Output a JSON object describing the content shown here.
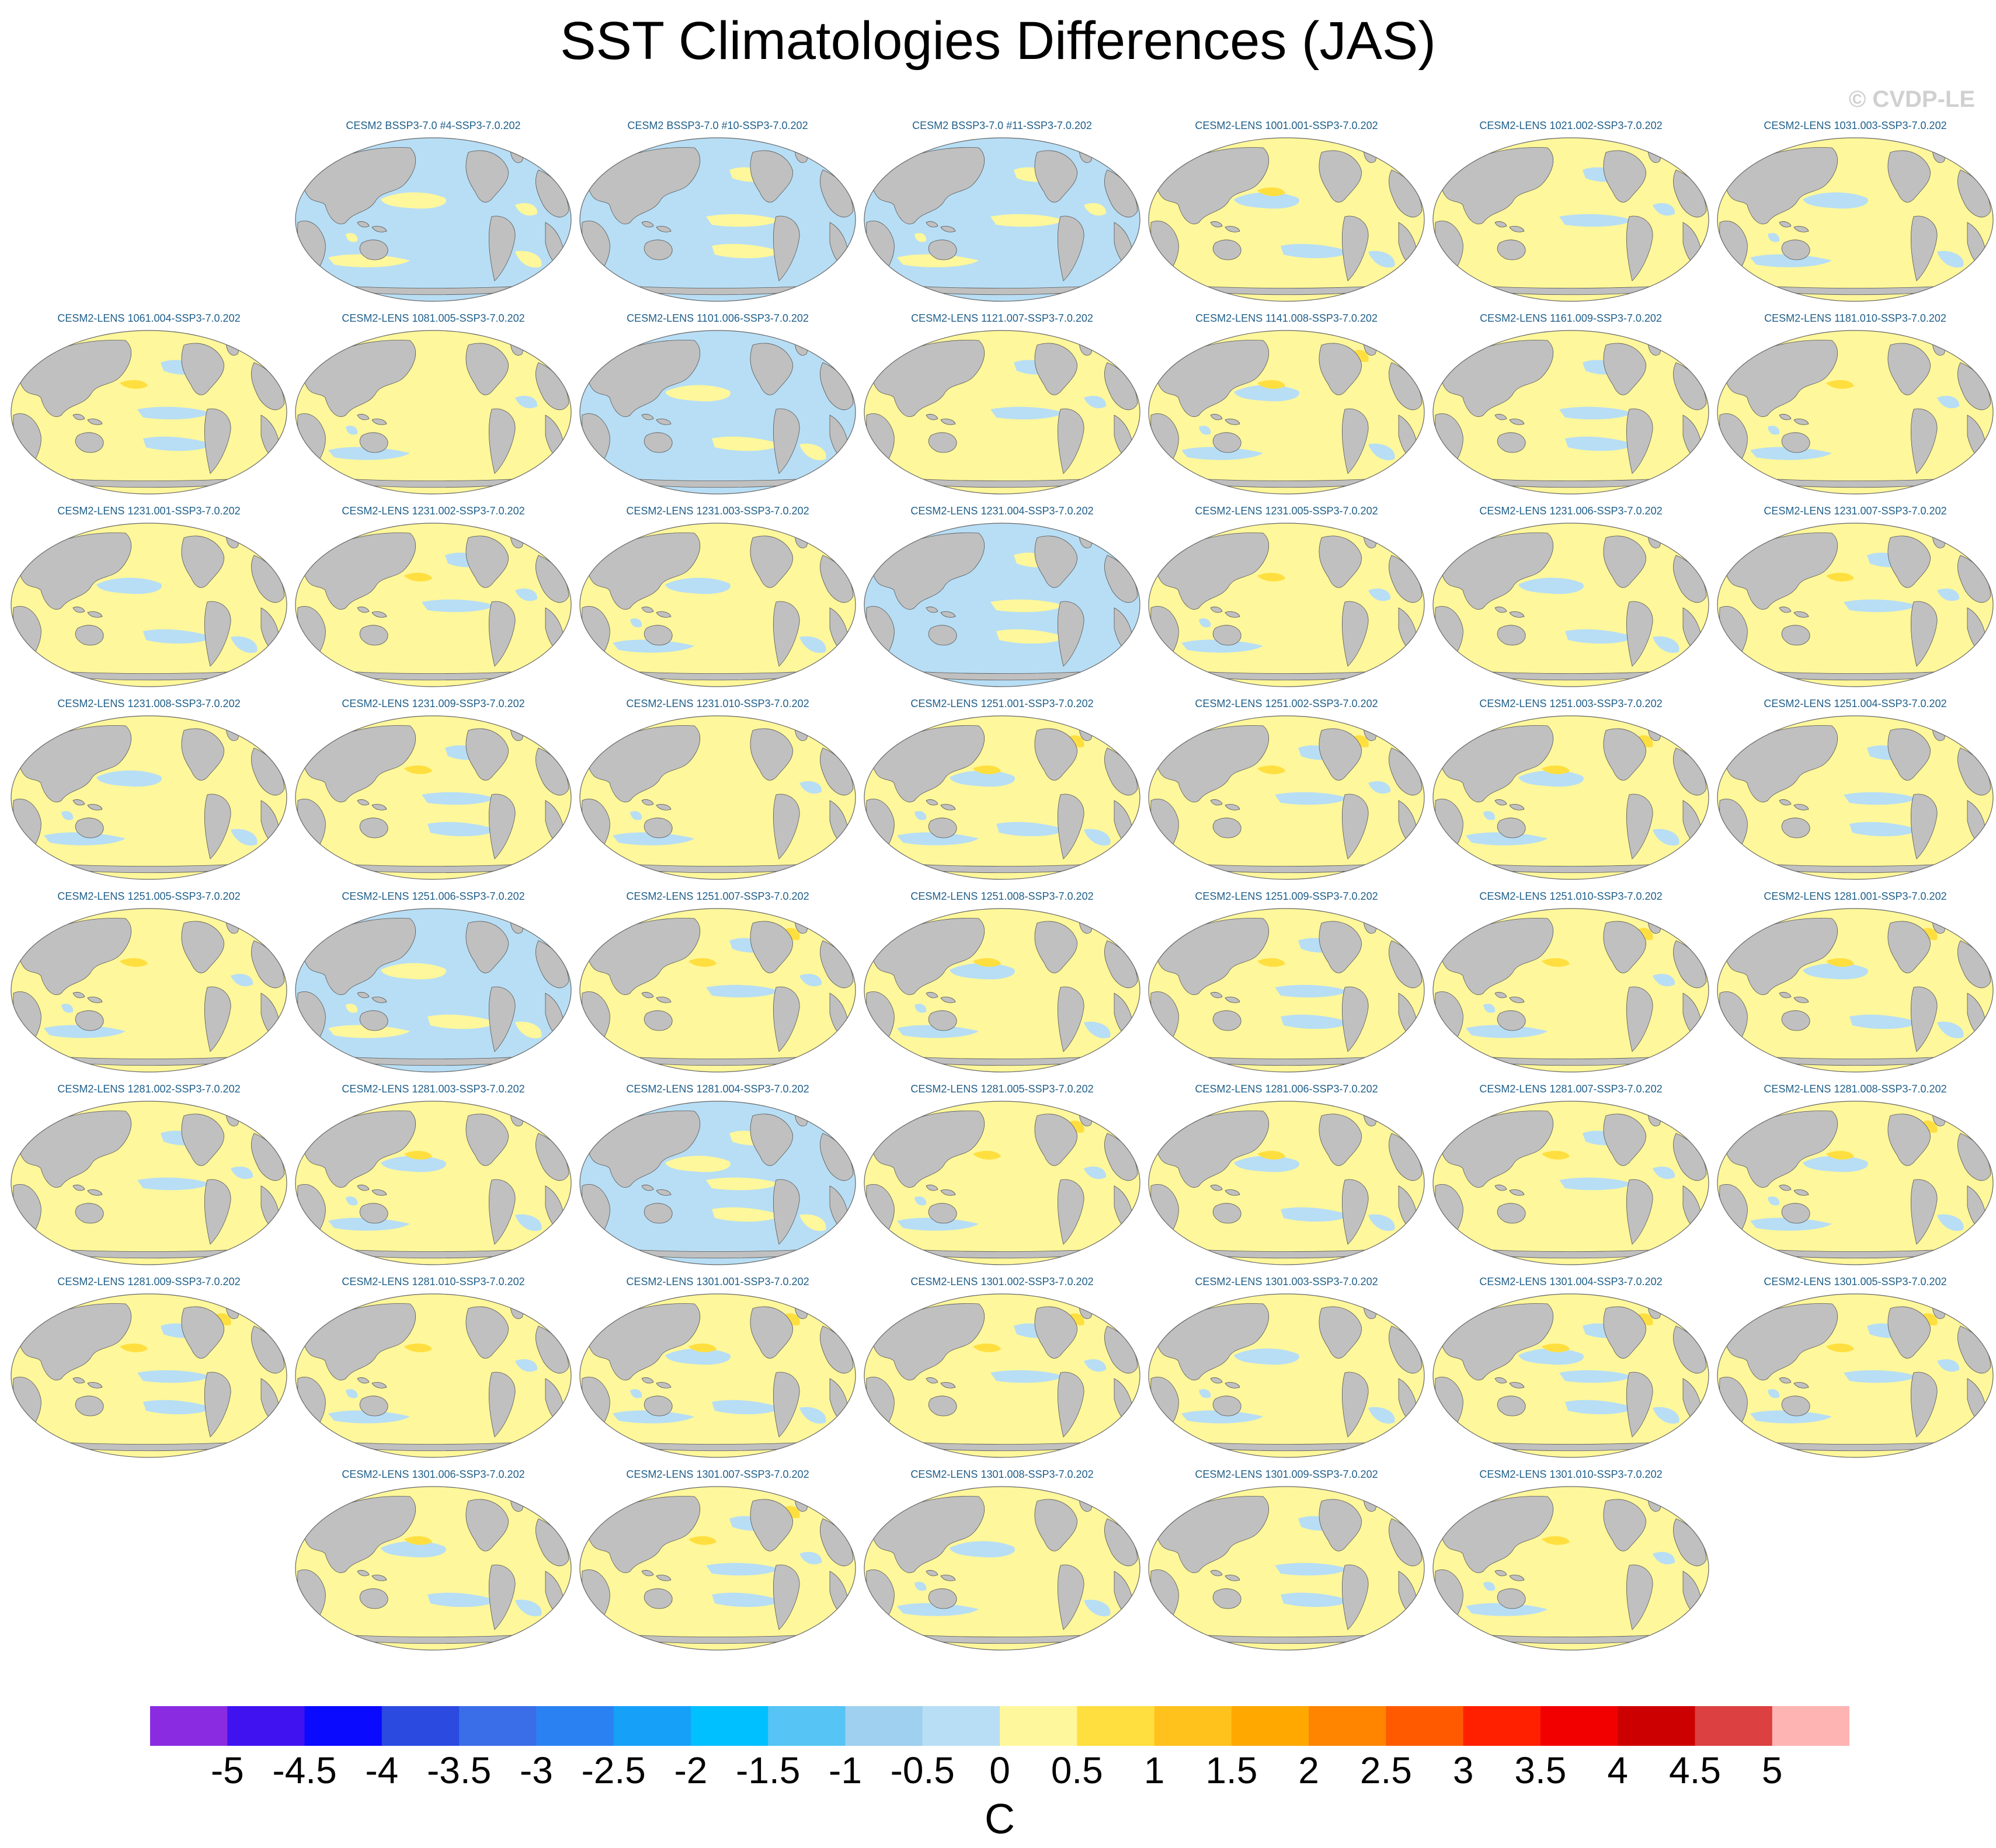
{
  "title": "SST Climatologies Differences (JAS)",
  "credit": "© CVDP-LE",
  "units": "C",
  "colors": {
    "land": "#c0c0c0",
    "ocean_pos": "#fff79b",
    "ocean_neg": "#b7def5",
    "pos_strong": "#ffdf3f",
    "neg_strong": "#9fd0ef",
    "label": "#1f5f8a"
  },
  "colorbar": {
    "colors": [
      "#8a2be2",
      "#4012f0",
      "#0a0aff",
      "#2a4ae0",
      "#3a6ee8",
      "#2a82f2",
      "#16a0f8",
      "#00c0ff",
      "#56c4f4",
      "#9fd0ef",
      "#b7def5",
      "#fff79b",
      "#ffdf3f",
      "#ffc21c",
      "#ffa800",
      "#ff8400",
      "#ff5a00",
      "#ff2000",
      "#f20000",
      "#cc0000",
      "#dc4040",
      "#ffb4b4"
    ],
    "ticks": [
      "-5",
      "-4.5",
      "-4",
      "-3.5",
      "-3",
      "-2.5",
      "-2",
      "-1.5",
      "-1",
      "-0.5",
      "0",
      "0.5",
      "1",
      "1.5",
      "2",
      "2.5",
      "3",
      "3.5",
      "4",
      "4.5",
      "5"
    ]
  },
  "panels": [
    {
      "label": "CESM2 BSSP3-7.0 #4-SSP3-7.0.202",
      "row": 0,
      "col": 1,
      "bias": -0.3
    },
    {
      "label": "CESM2 BSSP3-7.0 #10-SSP3-7.0.202",
      "row": 0,
      "col": 2,
      "bias": -0.2
    },
    {
      "label": "CESM2 BSSP3-7.0 #11-SSP3-7.0.202",
      "row": 0,
      "col": 3,
      "bias": -0.4
    },
    {
      "label": "CESM2-LENS 1001.001-SSP3-7.0.202",
      "row": 0,
      "col": 4,
      "bias": 0.3
    },
    {
      "label": "CESM2-LENS 1021.002-SSP3-7.0.202",
      "row": 0,
      "col": 5,
      "bias": 0.1
    },
    {
      "label": "CESM2-LENS 1031.003-SSP3-7.0.202",
      "row": 0,
      "col": 6,
      "bias": 0.2
    },
    {
      "label": "CESM2-LENS 1061.004-SSP3-7.0.202",
      "row": 1,
      "col": 0,
      "bias": 0.3
    },
    {
      "label": "CESM2-LENS 1081.005-SSP3-7.0.202",
      "row": 1,
      "col": 1,
      "bias": 0.0
    },
    {
      "label": "CESM2-LENS 1101.006-SSP3-7.0.202",
      "row": 1,
      "col": 2,
      "bias": -0.1
    },
    {
      "label": "CESM2-LENS 1121.007-SSP3-7.0.202",
      "row": 1,
      "col": 3,
      "bias": 0.0
    },
    {
      "label": "CESM2-LENS 1141.008-SSP3-7.0.202",
      "row": 1,
      "col": 4,
      "bias": 0.4
    },
    {
      "label": "CESM2-LENS 1161.009-SSP3-7.0.202",
      "row": 1,
      "col": 5,
      "bias": 0.2
    },
    {
      "label": "CESM2-LENS 1181.010-SSP3-7.0.202",
      "row": 1,
      "col": 6,
      "bias": 0.3
    },
    {
      "label": "CESM2-LENS 1231.001-SSP3-7.0.202",
      "row": 2,
      "col": 0,
      "bias": 0.2
    },
    {
      "label": "CESM2-LENS 1231.002-SSP3-7.0.202",
      "row": 2,
      "col": 1,
      "bias": 0.3
    },
    {
      "label": "CESM2-LENS 1231.003-SSP3-7.0.202",
      "row": 2,
      "col": 2,
      "bias": 0.2
    },
    {
      "label": "CESM2-LENS 1231.004-SSP3-7.0.202",
      "row": 2,
      "col": 3,
      "bias": -0.1
    },
    {
      "label": "CESM2-LENS 1231.005-SSP3-7.0.202",
      "row": 2,
      "col": 4,
      "bias": 0.3
    },
    {
      "label": "CESM2-LENS 1231.006-SSP3-7.0.202",
      "row": 2,
      "col": 5,
      "bias": 0.2
    },
    {
      "label": "CESM2-LENS 1231.007-SSP3-7.0.202",
      "row": 2,
      "col": 6,
      "bias": 0.3
    },
    {
      "label": "CESM2-LENS 1231.008-SSP3-7.0.202",
      "row": 3,
      "col": 0,
      "bias": 0.2
    },
    {
      "label": "CESM2-LENS 1231.009-SSP3-7.0.202",
      "row": 3,
      "col": 1,
      "bias": 0.3
    },
    {
      "label": "CESM2-LENS 1231.010-SSP3-7.0.202",
      "row": 3,
      "col": 2,
      "bias": 0.1
    },
    {
      "label": "CESM2-LENS 1251.001-SSP3-7.0.202",
      "row": 3,
      "col": 3,
      "bias": 0.5
    },
    {
      "label": "CESM2-LENS 1251.002-SSP3-7.0.202",
      "row": 3,
      "col": 4,
      "bias": 0.4
    },
    {
      "label": "CESM2-LENS 1251.003-SSP3-7.0.202",
      "row": 3,
      "col": 5,
      "bias": 0.4
    },
    {
      "label": "CESM2-LENS 1251.004-SSP3-7.0.202",
      "row": 3,
      "col": 6,
      "bias": 0.2
    },
    {
      "label": "CESM2-LENS 1251.005-SSP3-7.0.202",
      "row": 4,
      "col": 0,
      "bias": 0.3
    },
    {
      "label": "CESM2-LENS 1251.006-SSP3-7.0.202",
      "row": 4,
      "col": 1,
      "bias": -0.4
    },
    {
      "label": "CESM2-LENS 1251.007-SSP3-7.0.202",
      "row": 4,
      "col": 2,
      "bias": 0.4
    },
    {
      "label": "CESM2-LENS 1251.008-SSP3-7.0.202",
      "row": 4,
      "col": 3,
      "bias": 0.3
    },
    {
      "label": "CESM2-LENS 1251.009-SSP3-7.0.202",
      "row": 4,
      "col": 4,
      "bias": 0.3
    },
    {
      "label": "CESM2-LENS 1251.010-SSP3-7.0.202",
      "row": 4,
      "col": 5,
      "bias": 0.4
    },
    {
      "label": "CESM2-LENS 1281.001-SSP3-7.0.202",
      "row": 4,
      "col": 6,
      "bias": 0.4
    },
    {
      "label": "CESM2-LENS 1281.002-SSP3-7.0.202",
      "row": 5,
      "col": 0,
      "bias": 0.1
    },
    {
      "label": "CESM2-LENS 1281.003-SSP3-7.0.202",
      "row": 5,
      "col": 1,
      "bias": 0.3
    },
    {
      "label": "CESM2-LENS 1281.004-SSP3-7.0.202",
      "row": 5,
      "col": 2,
      "bias": -0.3
    },
    {
      "label": "CESM2-LENS 1281.005-SSP3-7.0.202",
      "row": 5,
      "col": 3,
      "bias": 0.4
    },
    {
      "label": "CESM2-LENS 1281.006-SSP3-7.0.202",
      "row": 5,
      "col": 4,
      "bias": 0.3
    },
    {
      "label": "CESM2-LENS 1281.007-SSP3-7.0.202",
      "row": 5,
      "col": 5,
      "bias": 0.3
    },
    {
      "label": "CESM2-LENS 1281.008-SSP3-7.0.202",
      "row": 5,
      "col": 6,
      "bias": 0.4
    },
    {
      "label": "CESM2-LENS 1281.009-SSP3-7.0.202",
      "row": 6,
      "col": 0,
      "bias": 0.4
    },
    {
      "label": "CESM2-LENS 1281.010-SSP3-7.0.202",
      "row": 6,
      "col": 1,
      "bias": 0.3
    },
    {
      "label": "CESM2-LENS 1301.001-SSP3-7.0.202",
      "row": 6,
      "col": 2,
      "bias": 0.5
    },
    {
      "label": "CESM2-LENS 1301.002-SSP3-7.0.202",
      "row": 6,
      "col": 3,
      "bias": 0.4
    },
    {
      "label": "CESM2-LENS 1301.003-SSP3-7.0.202",
      "row": 6,
      "col": 4,
      "bias": 0.2
    },
    {
      "label": "CESM2-LENS 1301.004-SSP3-7.0.202",
      "row": 6,
      "col": 5,
      "bias": 0.5
    },
    {
      "label": "CESM2-LENS 1301.005-SSP3-7.0.202",
      "row": 6,
      "col": 6,
      "bias": 0.5
    },
    {
      "label": "CESM2-LENS 1301.006-SSP3-7.0.202",
      "row": 7,
      "col": 1,
      "bias": 0.3
    },
    {
      "label": "CESM2-LENS 1301.007-SSP3-7.0.202",
      "row": 7,
      "col": 2,
      "bias": 0.5
    },
    {
      "label": "CESM2-LENS 1301.008-SSP3-7.0.202",
      "row": 7,
      "col": 3,
      "bias": 0.1
    },
    {
      "label": "CESM2-LENS 1301.009-SSP3-7.0.202",
      "row": 7,
      "col": 4,
      "bias": 0.2
    },
    {
      "label": "CESM2-LENS 1301.010-SSP3-7.0.202",
      "row": 7,
      "col": 5,
      "bias": 0.3
    }
  ]
}
